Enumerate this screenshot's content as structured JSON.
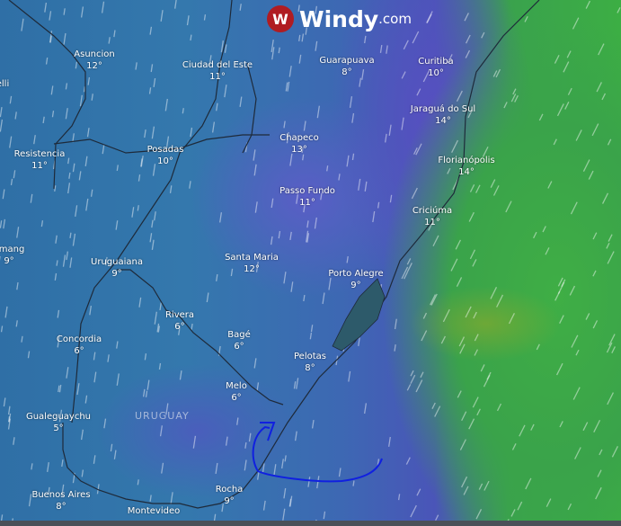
{
  "brand": {
    "name": "Windy",
    "tld": ".com",
    "logo_color": "#b01c22"
  },
  "country_label": "URUGUAY",
  "cities": [
    {
      "name": "Asuncion",
      "temp": "12°"
    },
    {
      "name": "Ciudad del Este",
      "temp": "11°"
    },
    {
      "name": "Guarapuava",
      "temp": "8°"
    },
    {
      "name": "Curitiba",
      "temp": "10°"
    },
    {
      "name": "Jaraguá do Sul",
      "temp": "14°"
    },
    {
      "name": "Chapeco",
      "temp": "13°"
    },
    {
      "name": "Posadas",
      "temp": "10°"
    },
    {
      "name": "Resistencia",
      "temp": "11°"
    },
    {
      "name": "Florianópolis",
      "temp": "14°"
    },
    {
      "name": "Passo Fundo",
      "temp": "11°"
    },
    {
      "name": "Criciúma",
      "temp": "11°"
    },
    {
      "name": "Santa Maria",
      "temp": "12°"
    },
    {
      "name": "omang",
      "temp": "9°"
    },
    {
      "name": "Uruguaiana",
      "temp": "9°"
    },
    {
      "name": "Porto Alegre",
      "temp": "9°"
    },
    {
      "name": "Rivera",
      "temp": "6°"
    },
    {
      "name": "Bagé",
      "temp": "6°"
    },
    {
      "name": "Concordia",
      "temp": "6°"
    },
    {
      "name": "Pelotas",
      "temp": "8°"
    },
    {
      "name": "Melo",
      "temp": "6°"
    },
    {
      "name": "Gualeguaychu",
      "temp": "5°"
    },
    {
      "name": "Rocha",
      "temp": "9°"
    },
    {
      "name": "Buenos Aires",
      "temp": "8°"
    },
    {
      "name": "Montevideo",
      "temp": ""
    },
    {
      "name": "elli",
      "temp": ""
    }
  ],
  "colors": {
    "land_wind": "#3478ad",
    "low_wind": "#4a55b8",
    "high_wind": "#3cae44",
    "annotation": "#1020e0"
  }
}
